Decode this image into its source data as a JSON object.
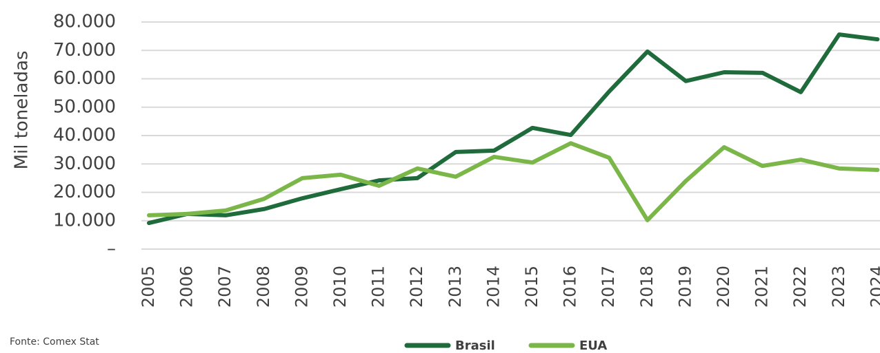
{
  "chart_data": {
    "type": "line",
    "y_label": "Mil toneladas",
    "source": "Fonte: Comex Stat",
    "categories": [
      "2005",
      "2006",
      "2007",
      "2008",
      "2009",
      "2010",
      "2011",
      "2012",
      "2013",
      "2014",
      "2015",
      "2016",
      "2017",
      "2018",
      "2019",
      "2020",
      "2021",
      "2022",
      "2023",
      "2024"
    ],
    "series": [
      {
        "name": "Brasil",
        "color": "#1f6b3b",
        "values": [
          9200,
          12400,
          11900,
          14100,
          17900,
          21100,
          24200,
          25000,
          34200,
          34700,
          42700,
          40200,
          55500,
          69600,
          59200,
          62300,
          62100,
          55300,
          75600,
          73900
        ]
      },
      {
        "name": "EUA",
        "color": "#7ab648",
        "values": [
          11900,
          12400,
          13600,
          17700,
          25000,
          26200,
          22300,
          28400,
          25500,
          32500,
          30500,
          37300,
          32200,
          10200,
          24000,
          35900,
          29300,
          31500,
          28400,
          27900
        ]
      }
    ],
    "ylim": [
      0,
      80000
    ],
    "yticks": [
      {
        "value": 0,
        "label": "–"
      },
      {
        "value": 10000,
        "label": "10.000"
      },
      {
        "value": 20000,
        "label": "20.000"
      },
      {
        "value": 30000,
        "label": "30.000"
      },
      {
        "value": 40000,
        "label": "40.000"
      },
      {
        "value": 50000,
        "label": "50.000"
      },
      {
        "value": 60000,
        "label": "60.000"
      },
      {
        "value": 70000,
        "label": "70.000"
      },
      {
        "value": 80000,
        "label": "80.000"
      }
    ],
    "grid": true,
    "legend": "bottom"
  }
}
